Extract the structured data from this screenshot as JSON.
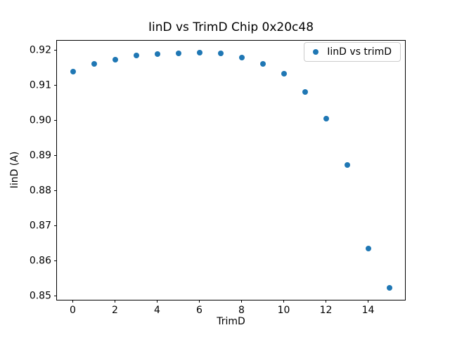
{
  "figure": {
    "background": "#ffffff",
    "spine_color": "#000000"
  },
  "chart_data": {
    "type": "scatter",
    "title": "IinD vs TrimD Chip 0x20c48",
    "xlabel": "TrimD",
    "ylabel": "IinD (A)",
    "grid": false,
    "legend_position": "upper right",
    "legend": [
      {
        "label": "IinD vs trimD",
        "marker_color": "#1f77b4"
      }
    ],
    "marker_color": "#1f77b4",
    "x": [
      0,
      1,
      2,
      3,
      4,
      5,
      6,
      7,
      8,
      9,
      10,
      11,
      12,
      13,
      14,
      15
    ],
    "y": [
      0.9139,
      0.9161,
      0.9173,
      0.9185,
      0.9189,
      0.9191,
      0.9193,
      0.9191,
      0.918,
      0.9162,
      0.9133,
      0.9081,
      0.9005,
      0.8874,
      0.8636,
      0.8523
    ],
    "xlim": [
      -0.75,
      15.75
    ],
    "ylim": [
      0.8489,
      0.9227
    ],
    "x_ticks": {
      "values": [
        0,
        2,
        4,
        6,
        8,
        10,
        12,
        14
      ],
      "labels": [
        "0",
        "2",
        "4",
        "6",
        "8",
        "10",
        "12",
        "14"
      ]
    },
    "y_ticks": {
      "values": [
        0.85,
        0.86,
        0.87,
        0.88,
        0.89,
        0.9,
        0.91,
        0.92
      ],
      "labels": [
        "0.85",
        "0.86",
        "0.87",
        "0.88",
        "0.89",
        "0.90",
        "0.91",
        "0.92"
      ]
    }
  }
}
